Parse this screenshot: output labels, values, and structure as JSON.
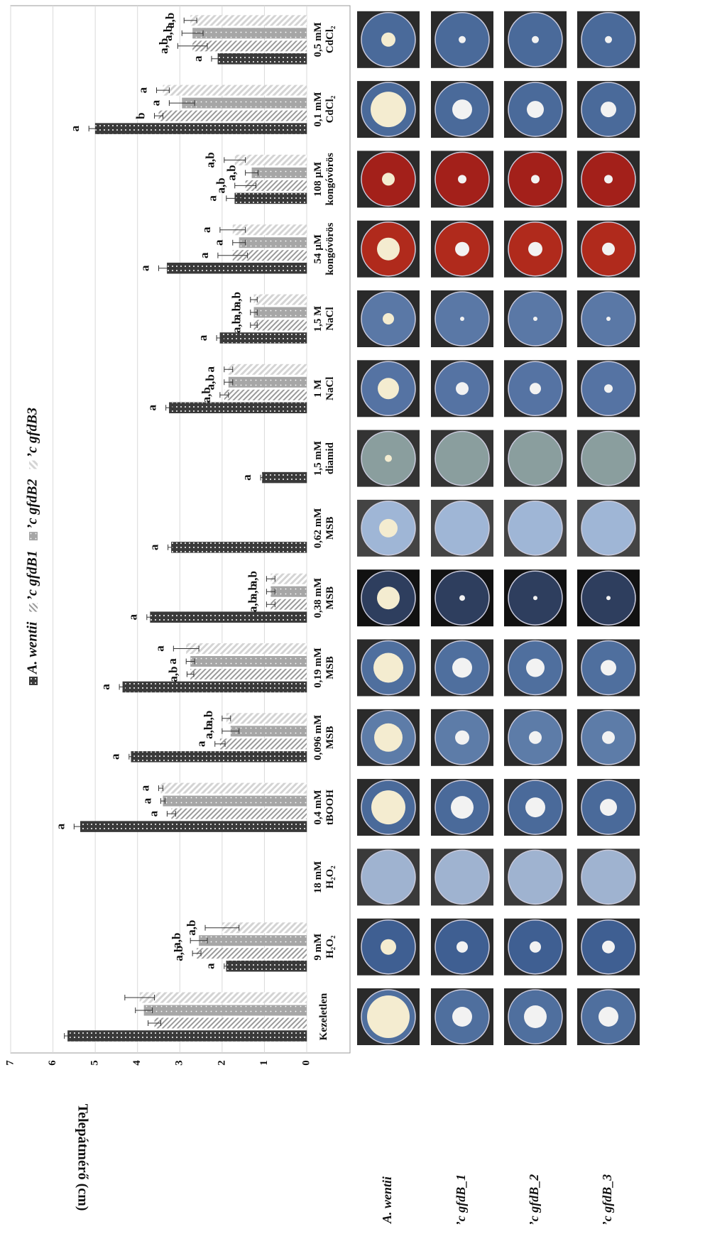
{
  "chart_data": {
    "type": "bar",
    "orientation": "horizontal",
    "y_label": "Telepátmérő (cm)",
    "categories": [
      "Kezeletlen",
      "9 mM\nH₂O₂",
      "18 mM\nH₂O₂",
      "0,4 mM\ntBOOH",
      "0,096 mM\nMSB",
      "0,19 mM\nMSB",
      "0,38 mM\nMSB",
      "0,62 mM\nMSB",
      "1,5 mM\ndiamid",
      "1 M\nNaCl",
      "1,5 M\nNaCl",
      "54 µM\nkongóvörös",
      "108 µM\nkongóvörös",
      "0,1 mM\nCdCl₂",
      "0,5 mM\nCdCl₂"
    ],
    "series": [
      {
        "name": "A. wentii",
        "color": "#3a3a3a",
        "values": [
          5.65,
          1.9,
          0,
          5.35,
          4.15,
          4.35,
          3.7,
          3.2,
          1.05,
          3.25,
          2.05,
          3.3,
          1.7,
          5.0,
          2.1
        ],
        "errors": [
          0.08,
          0.05,
          0,
          0.15,
          0.05,
          0.08,
          0.08,
          0.08,
          0.04,
          0.08,
          0.08,
          0.2,
          0.2,
          0.15,
          0.15
        ],
        "labels": [
          null,
          "a",
          null,
          "a",
          "a",
          "a",
          "a",
          "a",
          "a",
          "a",
          "a",
          "a",
          "a",
          "a",
          "a"
        ]
      },
      {
        "name": "’c gfdB1",
        "color": "#9a9a9a",
        "values": [
          3.6,
          2.6,
          0,
          3.2,
          2.05,
          2.75,
          0.85,
          0,
          0,
          1.95,
          1.25,
          1.75,
          1.45,
          3.5,
          2.7
        ],
        "errors": [
          0.15,
          0.1,
          0,
          0.1,
          0.12,
          0.08,
          0.1,
          0,
          0,
          0.1,
          0.08,
          0.35,
          0.25,
          0.1,
          0.35
        ],
        "labels": [
          null,
          "a,b",
          null,
          "a",
          "a",
          "a,b",
          "a,b",
          null,
          null,
          "a,b",
          "a,b",
          "a",
          "a,b",
          "b",
          "a,b"
        ]
      },
      {
        "name": "’c gfdB2",
        "color": "#a6a6a6",
        "values": [
          3.85,
          2.55,
          0,
          3.4,
          1.8,
          2.75,
          0.85,
          0,
          0,
          1.85,
          1.25,
          1.6,
          1.3,
          2.95,
          2.7
        ],
        "errors": [
          0.2,
          0.2,
          0,
          0.05,
          0.2,
          0.1,
          0.1,
          0,
          0,
          0.1,
          0.08,
          0.15,
          0.15,
          0.3,
          0.25
        ],
        "labels": [
          null,
          "a,b",
          null,
          "a",
          "a,b",
          "a",
          "a,b",
          null,
          null,
          "a,b",
          "a,b",
          "a",
          "a,b",
          "a",
          "a,b"
        ]
      },
      {
        "name": "’c gfdB3",
        "color": "#d4d4d4",
        "values": [
          3.95,
          2.0,
          0,
          3.45,
          1.9,
          2.85,
          0.85,
          0,
          0,
          1.85,
          1.25,
          1.75,
          1.7,
          3.4,
          2.75
        ],
        "errors": [
          0.35,
          0.4,
          0,
          0.05,
          0.1,
          0.3,
          0.1,
          0,
          0,
          0.1,
          0.08,
          0.3,
          0.25,
          0.15,
          0.15
        ],
        "labels": [
          null,
          "a,b",
          null,
          "a",
          "a,b",
          "a",
          "a,b",
          null,
          null,
          "a",
          "a,b",
          "a",
          "a,b",
          "a",
          "a,b"
        ]
      }
    ],
    "ylim": [
      0,
      7
    ],
    "yticks": [
      0,
      1,
      2,
      3,
      4,
      5,
      6,
      7
    ],
    "grid": true,
    "legend": "top"
  },
  "photos": {
    "rows": [
      "A. wentii",
      "’c gfdB_1",
      "’c gfdB_2",
      "’c gfdB_3"
    ]
  }
}
